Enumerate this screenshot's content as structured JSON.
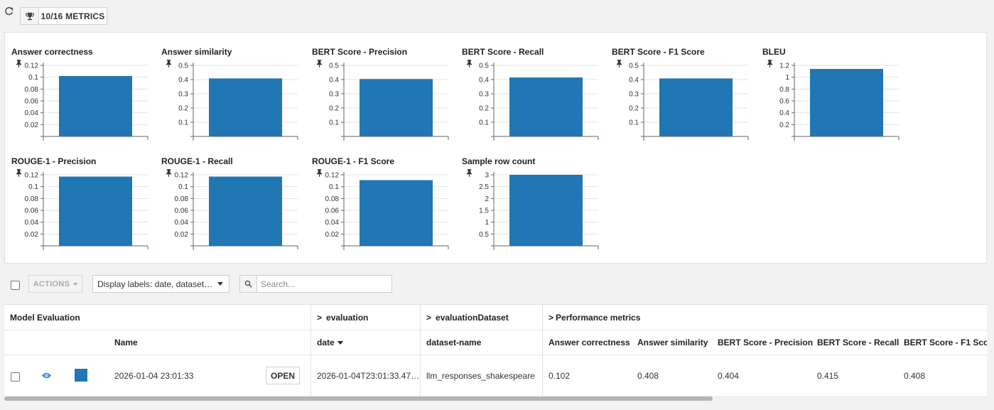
{
  "topbar": {
    "metrics_label": "10/16 METRICS"
  },
  "colors": {
    "bar": "#2077b4",
    "swatch": "#2077b4",
    "eye": "#3a8fd6"
  },
  "chart_data": [
    {
      "type": "bar",
      "title": "Answer correctness",
      "values": [
        0.102
      ],
      "yticks": [
        "0.02",
        "0.04",
        "0.06",
        "0.08",
        "0.1",
        "0.12"
      ],
      "ylim": [
        0,
        0.12
      ]
    },
    {
      "type": "bar",
      "title": "Answer similarity",
      "values": [
        0.408
      ],
      "yticks": [
        "0.1",
        "0.2",
        "0.3",
        "0.4",
        "0.5"
      ],
      "ylim": [
        0,
        0.5
      ]
    },
    {
      "type": "bar",
      "title": "BERT Score - Precision",
      "values": [
        0.404
      ],
      "yticks": [
        "0.1",
        "0.2",
        "0.3",
        "0.4",
        "0.5"
      ],
      "ylim": [
        0,
        0.5
      ]
    },
    {
      "type": "bar",
      "title": "BERT Score - Recall",
      "values": [
        0.415
      ],
      "yticks": [
        "0.1",
        "0.2",
        "0.3",
        "0.4",
        "0.5"
      ],
      "ylim": [
        0,
        0.5
      ]
    },
    {
      "type": "bar",
      "title": "BERT Score - F1 Score",
      "values": [
        0.408
      ],
      "yticks": [
        "0.1",
        "0.2",
        "0.3",
        "0.4",
        "0.5"
      ],
      "ylim": [
        0,
        0.5
      ]
    },
    {
      "type": "bar",
      "title": "BLEU",
      "values": [
        1.14
      ],
      "yticks": [
        "0.2",
        "0.4",
        "0.6",
        "0.8",
        "1",
        "1.2"
      ],
      "ylim": [
        0,
        1.2
      ]
    },
    {
      "type": "bar",
      "title": "ROUGE-1 - Precision",
      "values": [
        0.117
      ],
      "yticks": [
        "0.02",
        "0.04",
        "0.06",
        "0.08",
        "0.1",
        "0.12"
      ],
      "ylim": [
        0,
        0.12
      ]
    },
    {
      "type": "bar",
      "title": "ROUGE-1 - Recall",
      "values": [
        0.117
      ],
      "yticks": [
        "0.02",
        "0.04",
        "0.06",
        "0.08",
        "0.1",
        "0.12"
      ],
      "ylim": [
        0,
        0.12
      ]
    },
    {
      "type": "bar",
      "title": "ROUGE-1 - F1 Score",
      "values": [
        0.111
      ],
      "yticks": [
        "0.02",
        "0.04",
        "0.06",
        "0.08",
        "0.1",
        "0.12"
      ],
      "ylim": [
        0,
        0.12
      ]
    },
    {
      "type": "bar",
      "title": "Sample row count",
      "values": [
        3
      ],
      "yticks": [
        "0.5",
        "1",
        "1.5",
        "2",
        "2.5",
        "3"
      ],
      "ylim": [
        0,
        3
      ]
    }
  ],
  "toolbar": {
    "actions_label": "ACTIONS",
    "display_labels": "Display labels: date, dataset…",
    "search_placeholder": "Search..."
  },
  "table": {
    "groups": {
      "model_evaluation": "Model Evaluation",
      "evaluation": "evaluation",
      "evaluation_dataset": "evaluationDataset",
      "performance_metrics": "Performance metrics"
    },
    "columns": {
      "name": "Name",
      "date": "date",
      "dataset_name": "dataset-name",
      "answer_correctness": "Answer correctness",
      "answer_similarity": "Answer similarity",
      "bert_precision": "BERT Score - Precision",
      "bert_recall": "BERT Score - Recall",
      "bert_f1": "BERT Score - F1 Sco"
    },
    "row": {
      "name": "2026-01-04 23:01:33",
      "open_label": "OPEN",
      "date": "2026-01-04T23:01:33.47…",
      "dataset_name": "llm_responses_shakespeare",
      "answer_correctness": "0.102",
      "answer_similarity": "0.408",
      "bert_precision": "0.404",
      "bert_recall": "0.415",
      "bert_f1": "0.408"
    }
  }
}
